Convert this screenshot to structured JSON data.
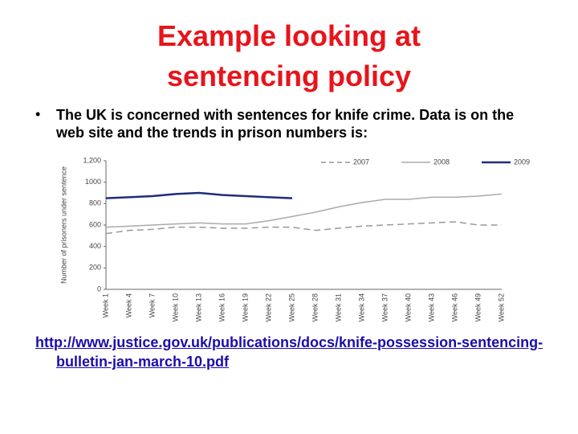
{
  "title": "Example looking at sentencing policy",
  "bullet": "The UK is concerned with sentences for knife crime. Data is on the web site and the trends in prison numbers is:",
  "link": "http://www.justice.gov.uk/publications/docs/knife-possession-sentencing-bulletin-jan-march-10.pdf",
  "chart_data": {
    "type": "line",
    "y_label": "Number of prisoners under sentence",
    "categories": [
      "Week 1",
      "Week 4",
      "Week 7",
      "Week 10",
      "Week 13",
      "Week 16",
      "Week 19",
      "Week 22",
      "Week 25",
      "Week 28",
      "Week 31",
      "Week 34",
      "Week 37",
      "Week 40",
      "Week 43",
      "Week 46",
      "Week 49",
      "Week 52"
    ],
    "series": [
      {
        "name": "2007",
        "color": "#999999",
        "dash": true,
        "values": [
          520,
          550,
          560,
          580,
          580,
          570,
          570,
          580,
          580,
          550,
          570,
          590,
          600,
          610,
          620,
          630,
          600,
          600
        ]
      },
      {
        "name": "2008",
        "color": "#aaaaaa",
        "dash": false,
        "values": [
          580,
          590,
          600,
          610,
          620,
          610,
          610,
          640,
          680,
          720,
          770,
          810,
          840,
          840,
          860,
          860,
          870,
          890
        ]
      },
      {
        "name": "2009",
        "color": "#1f2d7a",
        "dash": false,
        "values": [
          850,
          860,
          870,
          890,
          900,
          880,
          870,
          860,
          850,
          null,
          null,
          null,
          null,
          null,
          null,
          null,
          null,
          null
        ]
      }
    ],
    "ylim": [
      0,
      1200
    ],
    "yticks": [
      0,
      200,
      400,
      600,
      800,
      1000,
      {
        "value": 1200,
        "label": "1,200"
      }
    ],
    "legend": "top"
  }
}
